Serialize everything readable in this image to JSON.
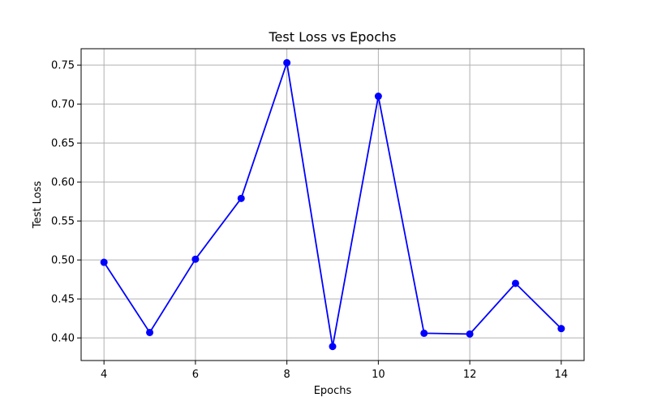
{
  "chart_data": {
    "type": "line",
    "title": "Test Loss vs Epochs",
    "xlabel": "Epochs",
    "ylabel": "Test Loss",
    "x": [
      4,
      5,
      6,
      7,
      8,
      9,
      10,
      11,
      12,
      13,
      14
    ],
    "series": [
      {
        "values": [
          0.497,
          0.407,
          0.501,
          0.579,
          0.753,
          0.389,
          0.71,
          0.406,
          0.405,
          0.47,
          0.412
        ],
        "color": "#0000ff",
        "marker": "circle"
      }
    ],
    "xticks": [
      4,
      6,
      8,
      10,
      12,
      14
    ],
    "xtick_labels": [
      "4",
      "6",
      "8",
      "10",
      "12",
      "14"
    ],
    "yticks": [
      0.4,
      0.45,
      0.5,
      0.55,
      0.6,
      0.65,
      0.7,
      0.75
    ],
    "ytick_labels": [
      "0.40",
      "0.45",
      "0.50",
      "0.55",
      "0.60",
      "0.65",
      "0.70",
      "0.75"
    ],
    "xlim": [
      3.5,
      14.5
    ],
    "ylim": [
      0.371,
      0.771
    ],
    "grid": true,
    "grid_color": "#b0b0b0"
  }
}
